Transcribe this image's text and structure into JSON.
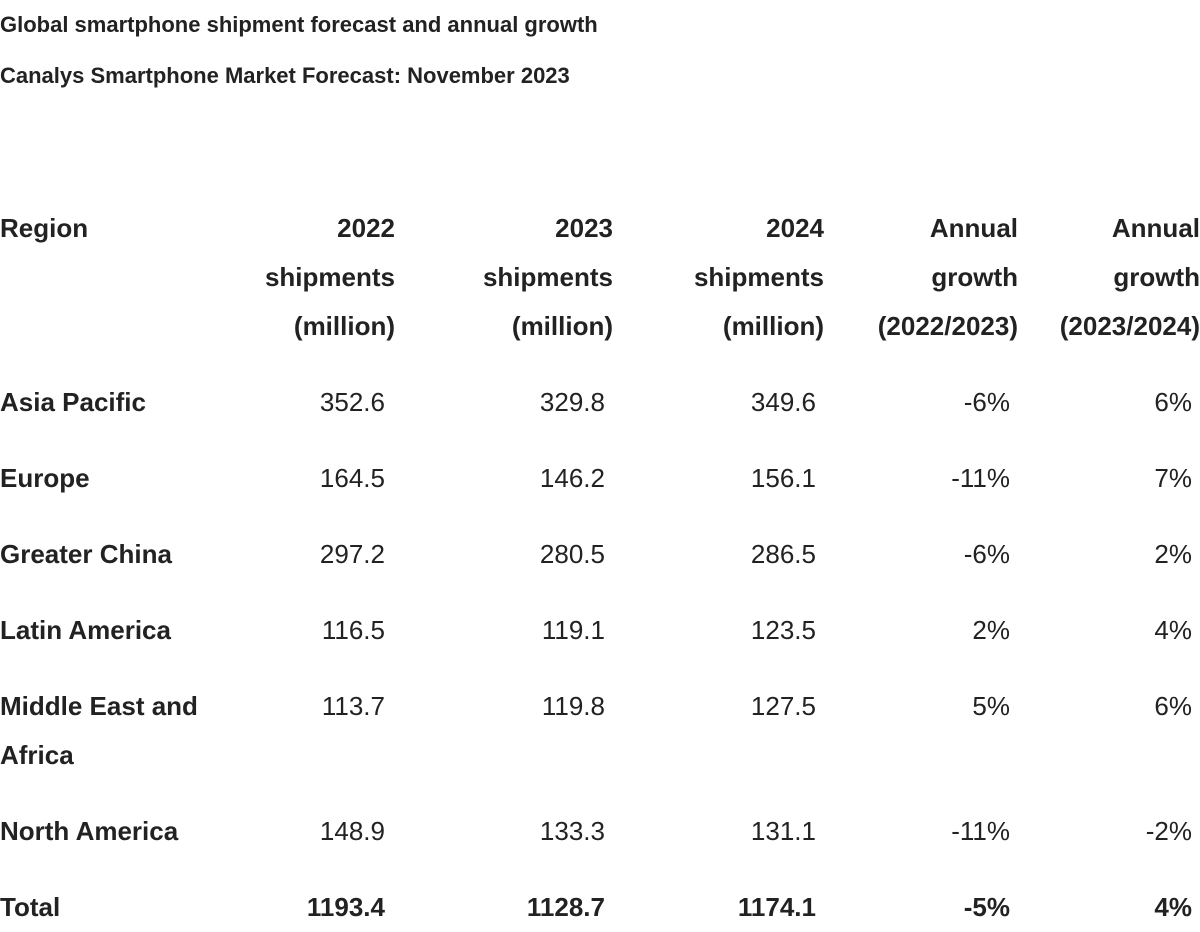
{
  "header": {
    "title": "Global smartphone shipment forecast and annual growth",
    "subtitle": "Canalys Smartphone Market Forecast: November 2023"
  },
  "table": {
    "columns": [
      "Region",
      "2022 shipments (million)",
      "2023 shipments (million)",
      "2024 shipments (million)",
      "Annual growth (2022/2023)",
      "Annual growth (2023/2024)"
    ],
    "rows": [
      [
        "Asia Pacific",
        "352.6",
        "329.8",
        "349.6",
        "-6%",
        "6%"
      ],
      [
        "Europe",
        "164.5",
        "146.2",
        "156.1",
        "-11%",
        "7%"
      ],
      [
        "Greater China",
        "297.2",
        "280.5",
        "286.5",
        "-6%",
        "2%"
      ],
      [
        "Latin America",
        "116.5",
        "119.1",
        "123.5",
        "2%",
        "4%"
      ],
      [
        "Middle East and Africa",
        "113.7",
        "119.8",
        "127.5",
        "5%",
        "6%"
      ],
      [
        "North America",
        "148.9",
        "133.3",
        "131.1",
        "-11%",
        "-2%"
      ]
    ],
    "total": [
      "Total",
      "1193.4",
      "1128.7",
      "1174.1",
      "-5%",
      "4%"
    ]
  }
}
